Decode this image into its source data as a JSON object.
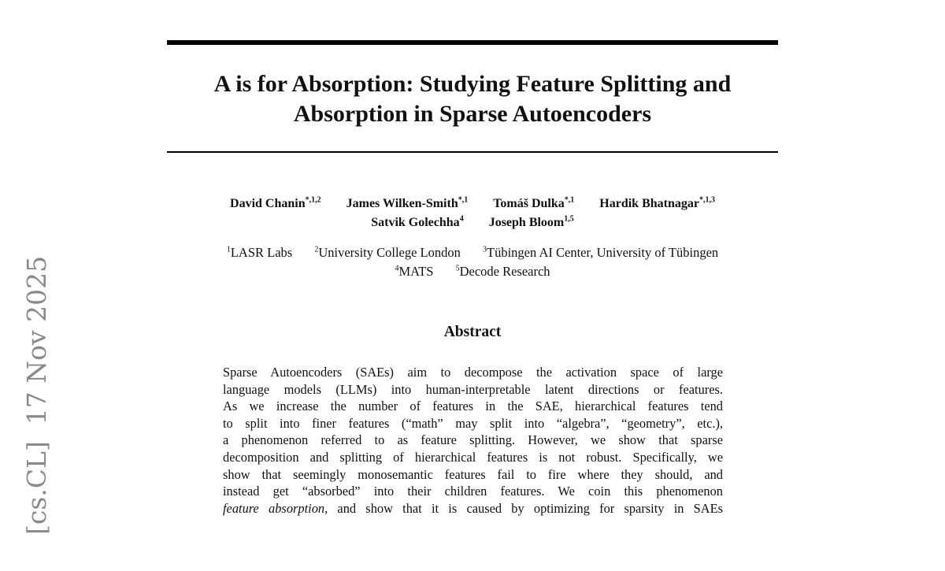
{
  "arxiv_stamp": "[cs.CL]  17 Nov 2025",
  "title_lines": [
    "A is for Absorption: Studying Feature Splitting and",
    "Absorption in Sparse Autoencoders"
  ],
  "authors": [
    {
      "name": "David Chanin",
      "marks": "*,1,2"
    },
    {
      "name": "James Wilken-Smith",
      "marks": "*,1"
    },
    {
      "name": "Tomáš Dulka",
      "marks": "*,1"
    },
    {
      "name": "Hardik Bhatnagar",
      "marks": "*,1,3"
    },
    {
      "name": "Satvik Golechha",
      "marks": "4"
    },
    {
      "name": "Joseph Bloom",
      "marks": "1,5"
    }
  ],
  "affiliations": [
    {
      "num": "1",
      "name": "LASR Labs"
    },
    {
      "num": "2",
      "name": "University College London"
    },
    {
      "num": "3",
      "name": "Tübingen AI Center, University of Tübingen"
    },
    {
      "num": "4",
      "name": "MATS"
    },
    {
      "num": "5",
      "name": "Decode Research"
    }
  ],
  "abstract": {
    "heading": "Abstract",
    "lines": [
      "Sparse Autoencoders (SAEs) aim to decompose the activation space of large",
      "language models (LLMs) into human-interpretable latent directions or features.",
      "As we increase the number of features in the SAE, hierarchical features tend",
      "to split into finer features (“math” may split into “algebra”, “geometry”, etc.),",
      "a phenomenon referred to as feature splitting.  However, we show that sparse",
      "decomposition and splitting of hierarchical features is not robust. Specifically, we",
      "show that seemingly monosemantic features fail to fire where they should, and",
      "instead get “absorbed” into their children features.  We coin this phenomenon"
    ],
    "last_line_italic": "feature absorption",
    "last_line_rest": ", and show that it is caused by optimizing for sparsity in SAEs"
  }
}
